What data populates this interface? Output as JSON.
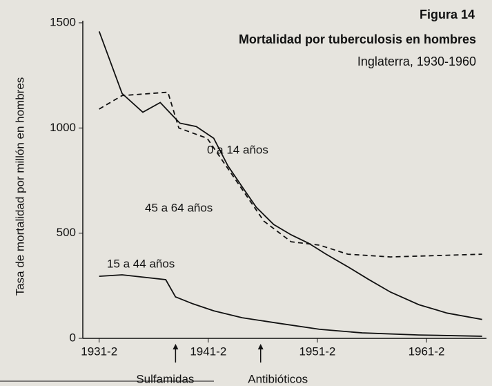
{
  "chart_data": {
    "type": "line",
    "figure_label": "Figura 14",
    "title": "Mortalidad por tuberculosis en hombres",
    "subtitle": "Inglaterra, 1930-1960",
    "y_axis_label": "Tasa de mortalidad por millón en hombres",
    "xlim": [
      1930,
      1967
    ],
    "ylim": [
      0,
      1500
    ],
    "xticks": [
      {
        "value": 1931.5,
        "label": "1931-2"
      },
      {
        "value": 1941.5,
        "label": "1941-2"
      },
      {
        "value": 1951.5,
        "label": "1951-2"
      },
      {
        "value": 1961.5,
        "label": "1961-2"
      }
    ],
    "yticks": [
      0,
      500,
      1000,
      1500
    ],
    "series": [
      {
        "name": "0 a 14 años",
        "color": "#111111",
        "dash": false,
        "x": [
          1931.5,
          1933.6,
          1935.5,
          1937.1,
          1938.1,
          1938.9,
          1940.4,
          1942,
          1943.3,
          1944.6,
          1945.9,
          1947.5,
          1949.1,
          1950.7,
          1952.3,
          1954.3,
          1956.2,
          1958.2,
          1960.8,
          1963.4,
          1966.6
        ],
        "values": [
          1459,
          1164,
          1075,
          1121,
          1066,
          1023,
          1007,
          951,
          820,
          721,
          623,
          541,
          492,
          452,
          400,
          340,
          280,
          220,
          160,
          120,
          90
        ]
      },
      {
        "name": "45 a 64 años",
        "color": "#111111",
        "dash": true,
        "x": [
          1931.5,
          1933.6,
          1937.8,
          1938.8,
          1941.4,
          1944,
          1946.6,
          1949.1,
          1951.7,
          1954.3,
          1958.2,
          1962.1,
          1966.6
        ],
        "values": [
          1090,
          1154,
          1170,
          1000,
          951,
          754,
          557,
          459,
          443,
          400,
          387,
          393,
          400
        ]
      },
      {
        "name": "15 a 44 años",
        "color": "#111111",
        "dash": false,
        "x": [
          1931.5,
          1933.6,
          1937.6,
          1938.5,
          1940.1,
          1942,
          1944.6,
          1947.9,
          1951.7,
          1955.6,
          1960.8,
          1966.6
        ],
        "values": [
          295,
          302,
          279,
          197,
          164,
          131,
          98,
          72,
          43,
          26,
          16,
          10
        ]
      }
    ],
    "annotations": [
      {
        "text": "Sulfamidas",
        "x": 1938.5
      },
      {
        "text": "Antibióticos",
        "x": 1946.3
      }
    ]
  }
}
